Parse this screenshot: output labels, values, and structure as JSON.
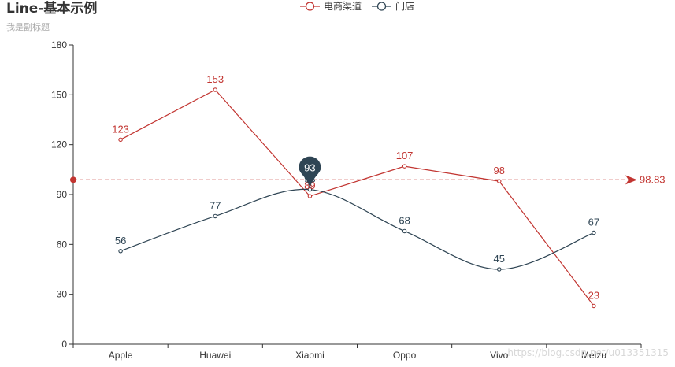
{
  "title": "Line-基本示例",
  "subtitle": "我是副标题",
  "watermark": "https://blog.csdn.net/u013351315",
  "colors": {
    "series_0": "#c23531",
    "series_1": "#2f4554",
    "title": "#333333",
    "subtitle": "#aaaaaa",
    "axis": "#333333",
    "pin_text": "#ffffff"
  },
  "chart_data": {
    "type": "line",
    "categories": [
      "Apple",
      "Huawei",
      "Xiaomi",
      "Oppo",
      "Vivo",
      "Meizu"
    ],
    "series": [
      {
        "name": "电商渠道",
        "values": [
          123,
          153,
          89,
          107,
          98,
          23
        ],
        "smooth": false,
        "mark_line": {
          "type": "average",
          "value": 98.83,
          "label": "98.83"
        }
      },
      {
        "name": "门店",
        "values": [
          56,
          77,
          93,
          68,
          45,
          67
        ],
        "smooth": true,
        "mark_point": {
          "type": "max",
          "category": "Xiaomi",
          "value": 93,
          "label": "93"
        }
      }
    ],
    "y_ticks": [
      "0",
      "30",
      "60",
      "90",
      "120",
      "150",
      "180"
    ],
    "ylim": [
      0,
      180
    ],
    "legend_position": "top-center",
    "grid": false
  }
}
